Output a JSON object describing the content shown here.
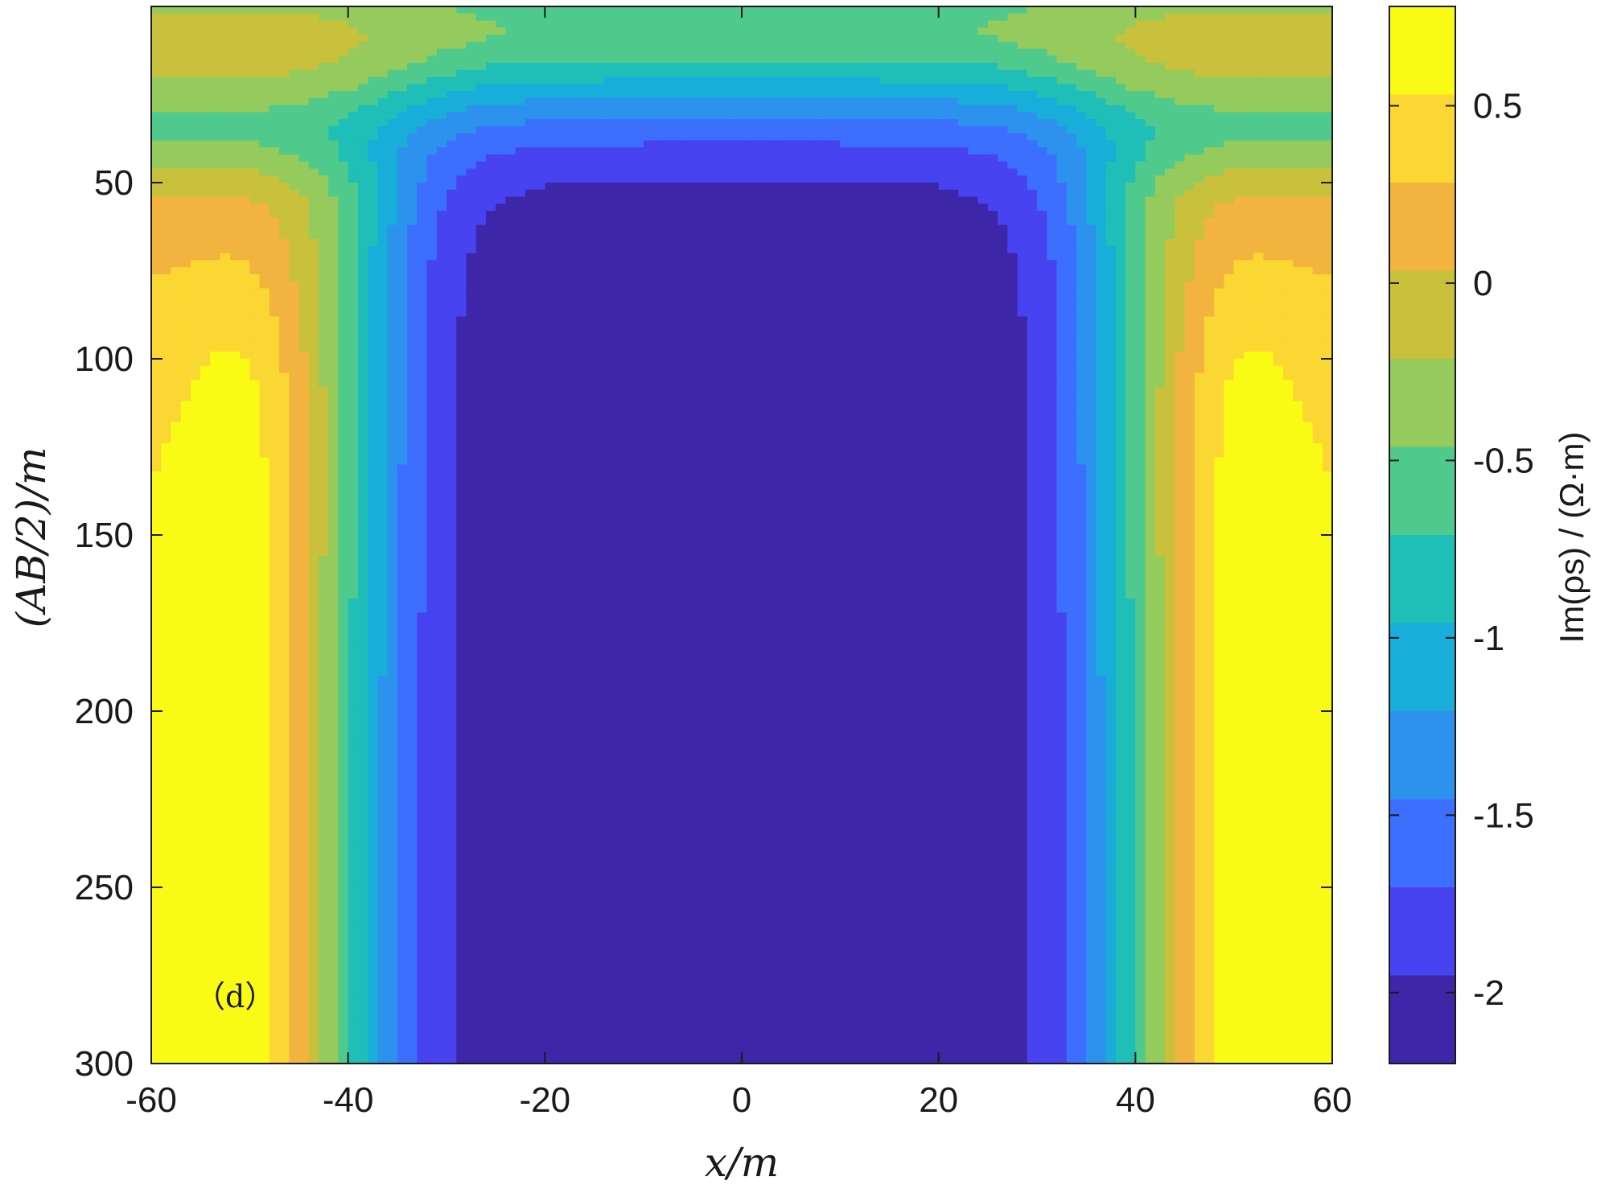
{
  "chart_data": {
    "type": "heatmap",
    "panel_label": "（d）",
    "xlabel": "x/m",
    "ylabel": "(AB/2)/m",
    "colorbar_label": "Im(ρs) / (Ω·m)",
    "xlim": [
      -60,
      60
    ],
    "ylim": [
      0,
      300
    ],
    "y_reversed": true,
    "x_ticks": [
      -60,
      -40,
      -20,
      0,
      20,
      40,
      60
    ],
    "x_tick_labels": [
      "-60",
      "-40",
      "-20",
      "0",
      "20",
      "40",
      "60"
    ],
    "y_ticks": [
      50,
      100,
      150,
      200,
      250,
      300
    ],
    "y_tick_labels": [
      "50",
      "100",
      "150",
      "200",
      "250",
      "300"
    ],
    "clim": [
      -2.2,
      0.78
    ],
    "colorbar_ticks": [
      0.5,
      0,
      -0.5,
      -1,
      -1.5,
      -2
    ],
    "colorbar_tick_labels": [
      "0.5",
      "0",
      "-0.5",
      "-1",
      "-1.5",
      "-2"
    ],
    "colormap": [
      "#3e26a8",
      "#4743f0",
      "#3c6ffd",
      "#2d92ee",
      "#18aed9",
      "#1fbfb8",
      "#4fca8c",
      "#94cb5c",
      "#c9c13c",
      "#f2b43e",
      "#fbd733",
      "#f9fb15"
    ],
    "grid": false,
    "legend": "colorbar-right"
  }
}
